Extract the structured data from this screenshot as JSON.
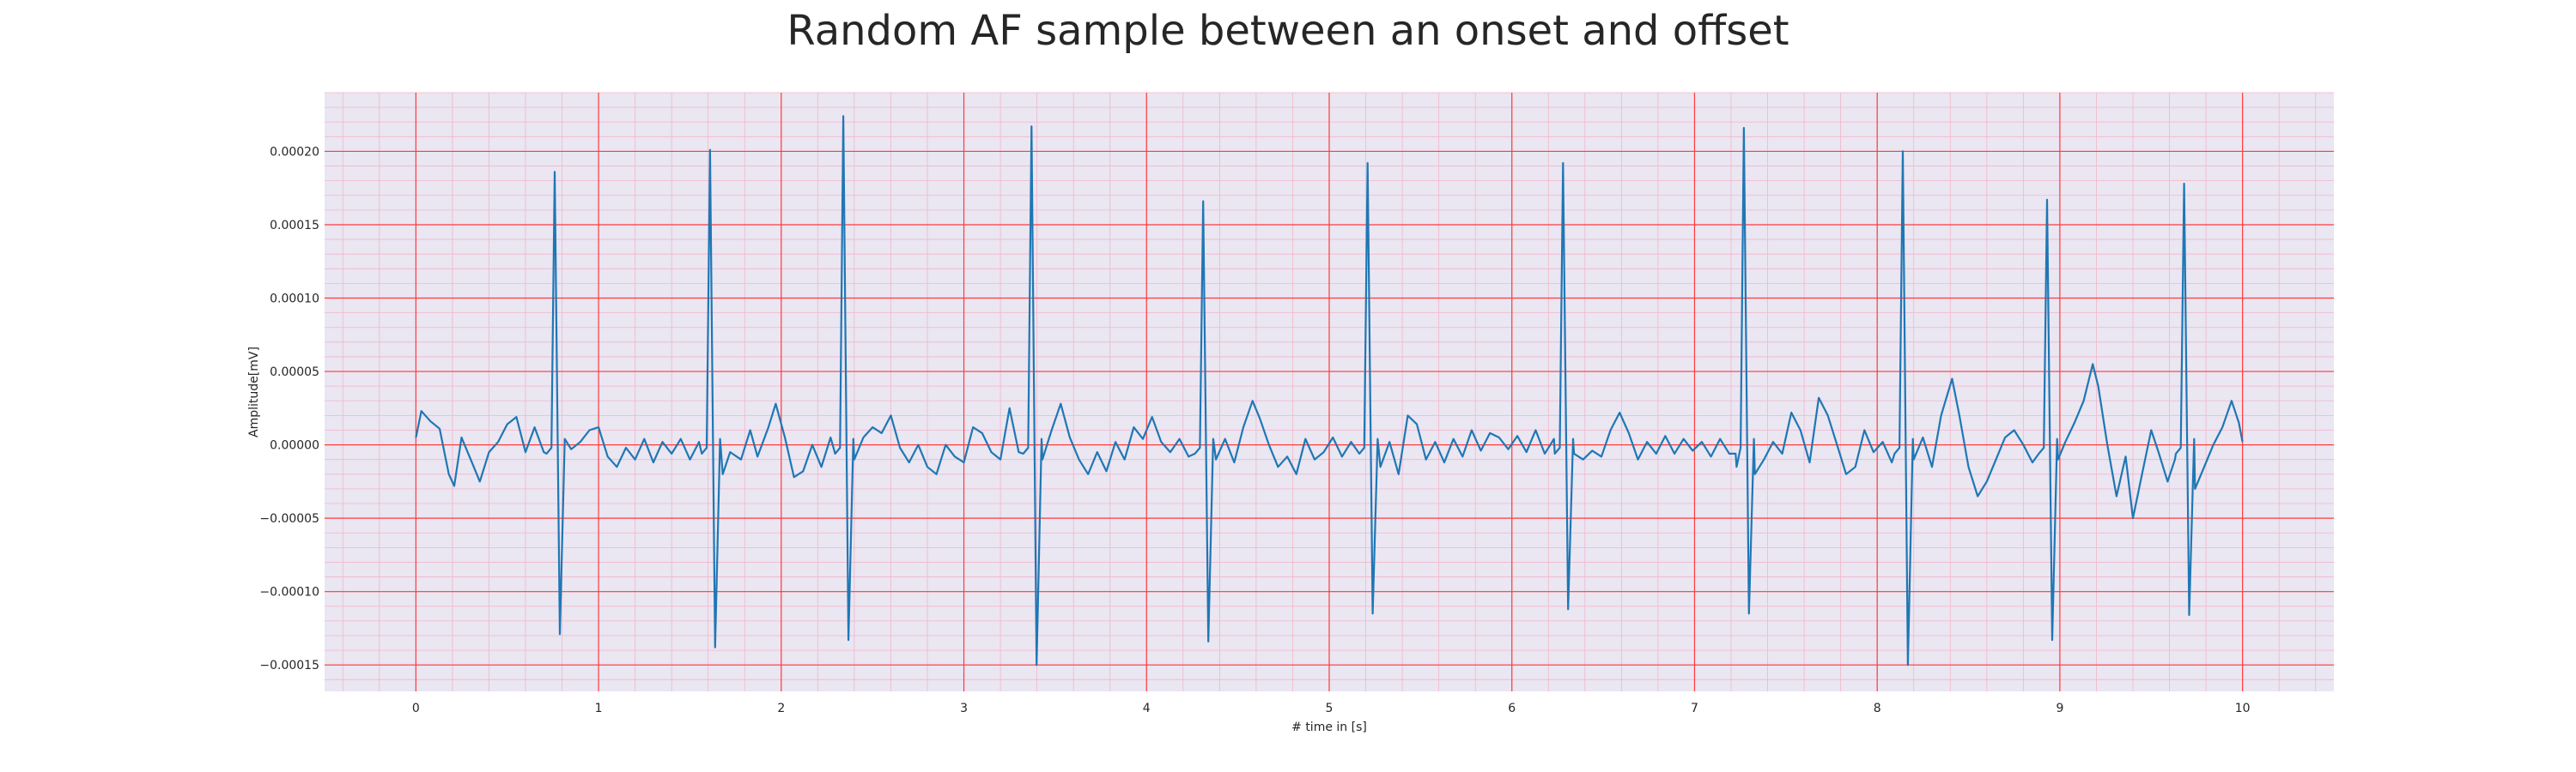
{
  "chart_data": {
    "type": "line",
    "title": "Random AF sample between an onset and offset",
    "xlabel": "# time in [s]",
    "ylabel": "Amplitude[mV]",
    "xlim": [
      -0.5,
      10.5
    ],
    "ylim": [
      -0.000168,
      0.00024
    ],
    "xticks": [
      0,
      1,
      2,
      3,
      4,
      5,
      6,
      7,
      8,
      9,
      10
    ],
    "xtick_labels": [
      "0",
      "1",
      "2",
      "3",
      "4",
      "5",
      "6",
      "7",
      "8",
      "9",
      "10"
    ],
    "yticks": [
      -0.00015,
      -0.0001,
      -5e-05,
      0.0,
      5e-05,
      0.0001,
      0.00015,
      0.0002
    ],
    "ytick_labels": [
      "−0.00015",
      "−0.00010",
      "−0.00005",
      "0.00000",
      "0.00005",
      "0.00010",
      "0.00015",
      "0.00020"
    ],
    "grid": true,
    "minor_grid": true,
    "colors": {
      "line": "#1f77b4",
      "background": "#eae6f2",
      "major_grid": "#ff3b3b",
      "minor_grid": "#f2b6c8"
    },
    "series": [
      {
        "name": "AF sample",
        "beats": [
          {
            "t": 0.76,
            "peak": 0.000186,
            "trough": -0.000129
          },
          {
            "t": 1.61,
            "peak": 0.000201,
            "trough": -0.000138
          },
          {
            "t": 2.34,
            "peak": 0.000224,
            "trough": -0.000133
          },
          {
            "t": 3.37,
            "peak": 0.000217,
            "trough": -0.00015
          },
          {
            "t": 4.31,
            "peak": 0.000166,
            "trough": -0.000134
          },
          {
            "t": 5.21,
            "peak": 0.000192,
            "trough": -0.000115
          },
          {
            "t": 6.28,
            "peak": 0.000192,
            "trough": -0.000112
          },
          {
            "t": 7.27,
            "peak": 0.000216,
            "trough": -0.000115
          },
          {
            "t": 8.14,
            "peak": 0.0002,
            "trough": -0.00015
          },
          {
            "t": 8.93,
            "peak": 0.000167,
            "trough": -0.000133
          },
          {
            "t": 9.68,
            "peak": 0.000178,
            "trough": -0.000116
          }
        ],
        "baseline": [
          [
            0.0,
            5e-06
          ],
          [
            0.03,
            2.3e-05
          ],
          [
            0.08,
            1.6e-05
          ],
          [
            0.13,
            1.1e-05
          ],
          [
            0.18,
            -2e-05
          ],
          [
            0.21,
            -2.8e-05
          ],
          [
            0.25,
            5e-06
          ],
          [
            0.3,
            -1e-05
          ],
          [
            0.35,
            -2.5e-05
          ],
          [
            0.4,
            -5e-06
          ],
          [
            0.45,
            2e-06
          ],
          [
            0.5,
            1.4e-05
          ],
          [
            0.55,
            1.9e-05
          ],
          [
            0.6,
            -5e-06
          ],
          [
            0.65,
            1.2e-05
          ],
          [
            0.7,
            -5e-06
          ],
          [
            0.85,
            -3e-06
          ],
          [
            0.9,
            2e-06
          ],
          [
            0.95,
            1e-05
          ],
          [
            1.0,
            1.2e-05
          ],
          [
            1.05,
            -8e-06
          ],
          [
            1.1,
            -1.5e-05
          ],
          [
            1.15,
            -2e-06
          ],
          [
            1.2,
            -1e-05
          ],
          [
            1.25,
            4e-06
          ],
          [
            1.3,
            -1.2e-05
          ],
          [
            1.35,
            2e-06
          ],
          [
            1.4,
            -6e-06
          ],
          [
            1.45,
            4e-06
          ],
          [
            1.5,
            -1e-05
          ],
          [
            1.55,
            2e-06
          ],
          [
            1.68,
            -2e-05
          ],
          [
            1.72,
            -5e-06
          ],
          [
            1.78,
            -1e-05
          ],
          [
            1.83,
            1e-05
          ],
          [
            1.87,
            -8e-06
          ],
          [
            1.93,
            1.2e-05
          ],
          [
            1.97,
            2.8e-05
          ],
          [
            2.02,
            5e-06
          ],
          [
            2.07,
            -2.2e-05
          ],
          [
            2.12,
            -1.8e-05
          ],
          [
            2.17,
            0.0
          ],
          [
            2.22,
            -1.5e-05
          ],
          [
            2.27,
            5e-06
          ],
          [
            2.4,
            -1e-05
          ],
          [
            2.45,
            5e-06
          ],
          [
            2.5,
            1.2e-05
          ],
          [
            2.55,
            8e-06
          ],
          [
            2.6,
            2e-05
          ],
          [
            2.65,
            -2e-06
          ],
          [
            2.7,
            -1.2e-05
          ],
          [
            2.75,
            0.0
          ],
          [
            2.8,
            -1.5e-05
          ],
          [
            2.85,
            -2e-05
          ],
          [
            2.9,
            0.0
          ],
          [
            2.95,
            -8e-06
          ],
          [
            3.0,
            -1.2e-05
          ],
          [
            3.05,
            1.2e-05
          ],
          [
            3.1,
            8e-06
          ],
          [
            3.15,
            -5e-06
          ],
          [
            3.2,
            -1e-05
          ],
          [
            3.25,
            2.5e-05
          ],
          [
            3.3,
            -5e-06
          ],
          [
            3.43,
            -1e-05
          ],
          [
            3.48,
            1e-05
          ],
          [
            3.53,
            2.8e-05
          ],
          [
            3.58,
            5e-06
          ],
          [
            3.63,
            -1e-05
          ],
          [
            3.68,
            -2e-05
          ],
          [
            3.73,
            -5e-06
          ],
          [
            3.78,
            -1.8e-05
          ],
          [
            3.83,
            2e-06
          ],
          [
            3.88,
            -1e-05
          ],
          [
            3.93,
            1.2e-05
          ],
          [
            3.98,
            4e-06
          ],
          [
            4.03,
            1.9e-05
          ],
          [
            4.08,
            2e-06
          ],
          [
            4.13,
            -5e-06
          ],
          [
            4.18,
            4e-06
          ],
          [
            4.23,
            -8e-06
          ],
          [
            4.38,
            -1e-05
          ],
          [
            4.43,
            4e-06
          ],
          [
            4.48,
            -1.2e-05
          ],
          [
            4.53,
            1.2e-05
          ],
          [
            4.58,
            3e-05
          ],
          [
            4.62,
            1.8e-05
          ],
          [
            4.67,
            0.0
          ],
          [
            4.72,
            -1.5e-05
          ],
          [
            4.77,
            -8e-06
          ],
          [
            4.82,
            -2e-05
          ],
          [
            4.87,
            4e-06
          ],
          [
            4.92,
            -1e-05
          ],
          [
            4.97,
            -5e-06
          ],
          [
            5.02,
            5e-06
          ],
          [
            5.07,
            -8e-06
          ],
          [
            5.12,
            2e-06
          ],
          [
            5.28,
            -1.5e-05
          ],
          [
            5.33,
            2e-06
          ],
          [
            5.38,
            -2e-05
          ],
          [
            5.43,
            2e-05
          ],
          [
            5.48,
            1.4e-05
          ],
          [
            5.53,
            -1e-05
          ],
          [
            5.58,
            2e-06
          ],
          [
            5.63,
            -1.2e-05
          ],
          [
            5.68,
            4e-06
          ],
          [
            5.73,
            -8e-06
          ],
          [
            5.78,
            1e-05
          ],
          [
            5.83,
            -4e-06
          ],
          [
            5.88,
            8e-06
          ],
          [
            5.93,
            5e-06
          ],
          [
            5.98,
            -3e-06
          ],
          [
            6.03,
            6e-06
          ],
          [
            6.08,
            -5e-06
          ],
          [
            6.13,
            1e-05
          ],
          [
            6.18,
            -6e-06
          ],
          [
            6.23,
            4e-06
          ],
          [
            6.34,
            -6e-06
          ],
          [
            6.39,
            -1e-05
          ],
          [
            6.44,
            -4e-06
          ],
          [
            6.49,
            -8e-06
          ],
          [
            6.54,
            1e-05
          ],
          [
            6.59,
            2.2e-05
          ],
          [
            6.64,
            8e-06
          ],
          [
            6.69,
            -1e-05
          ],
          [
            6.74,
            2e-06
          ],
          [
            6.79,
            -6e-06
          ],
          [
            6.84,
            6e-06
          ],
          [
            6.89,
            -6e-06
          ],
          [
            6.94,
            4e-06
          ],
          [
            6.99,
            -4e-06
          ],
          [
            7.04,
            2e-06
          ],
          [
            7.09,
            -8e-06
          ],
          [
            7.14,
            4e-06
          ],
          [
            7.19,
            -6e-06
          ],
          [
            7.23,
            -1.5e-05
          ],
          [
            7.33,
            -2e-05
          ],
          [
            7.38,
            -1e-05
          ],
          [
            7.43,
            2e-06
          ],
          [
            7.48,
            -6e-06
          ],
          [
            7.53,
            2.2e-05
          ],
          [
            7.58,
            1e-05
          ],
          [
            7.63,
            -1.2e-05
          ],
          [
            7.68,
            3.2e-05
          ],
          [
            7.73,
            2e-05
          ],
          [
            7.78,
            0.0
          ],
          [
            7.83,
            -2e-05
          ],
          [
            7.88,
            -1.5e-05
          ],
          [
            7.93,
            1e-05
          ],
          [
            7.98,
            -5e-06
          ],
          [
            8.03,
            2e-06
          ],
          [
            8.08,
            -1.2e-05
          ],
          [
            8.2,
            -1e-05
          ],
          [
            8.25,
            5e-06
          ],
          [
            8.3,
            -1.5e-05
          ],
          [
            8.35,
            2e-05
          ],
          [
            8.41,
            4.5e-05
          ],
          [
            8.45,
            2e-05
          ],
          [
            8.5,
            -1.5e-05
          ],
          [
            8.55,
            -3.5e-05
          ],
          [
            8.6,
            -2.5e-05
          ],
          [
            8.65,
            -1e-05
          ],
          [
            8.7,
            5e-06
          ],
          [
            8.75,
            1e-05
          ],
          [
            8.8,
            0.0
          ],
          [
            8.85,
            -1.2e-05
          ],
          [
            8.99,
            -1e-05
          ],
          [
            9.03,
            2e-06
          ],
          [
            9.08,
            1.5e-05
          ],
          [
            9.13,
            3e-05
          ],
          [
            9.18,
            5.5e-05
          ],
          [
            9.21,
            4e-05
          ],
          [
            9.26,
            0.0
          ],
          [
            9.31,
            -3.5e-05
          ],
          [
            9.36,
            -8e-06
          ],
          [
            9.4,
            -5e-05
          ],
          [
            9.45,
            -2e-05
          ],
          [
            9.5,
            1e-05
          ],
          [
            9.54,
            -5e-06
          ],
          [
            9.59,
            -2.5e-05
          ],
          [
            9.63,
            -1e-05
          ],
          [
            9.74,
            -3e-05
          ],
          [
            9.79,
            -1.5e-05
          ],
          [
            9.84,
            0.0
          ],
          [
            9.89,
            1.2e-05
          ],
          [
            9.94,
            3e-05
          ],
          [
            9.98,
            1.5e-05
          ],
          [
            10.0,
            2e-06
          ]
        ]
      }
    ]
  }
}
